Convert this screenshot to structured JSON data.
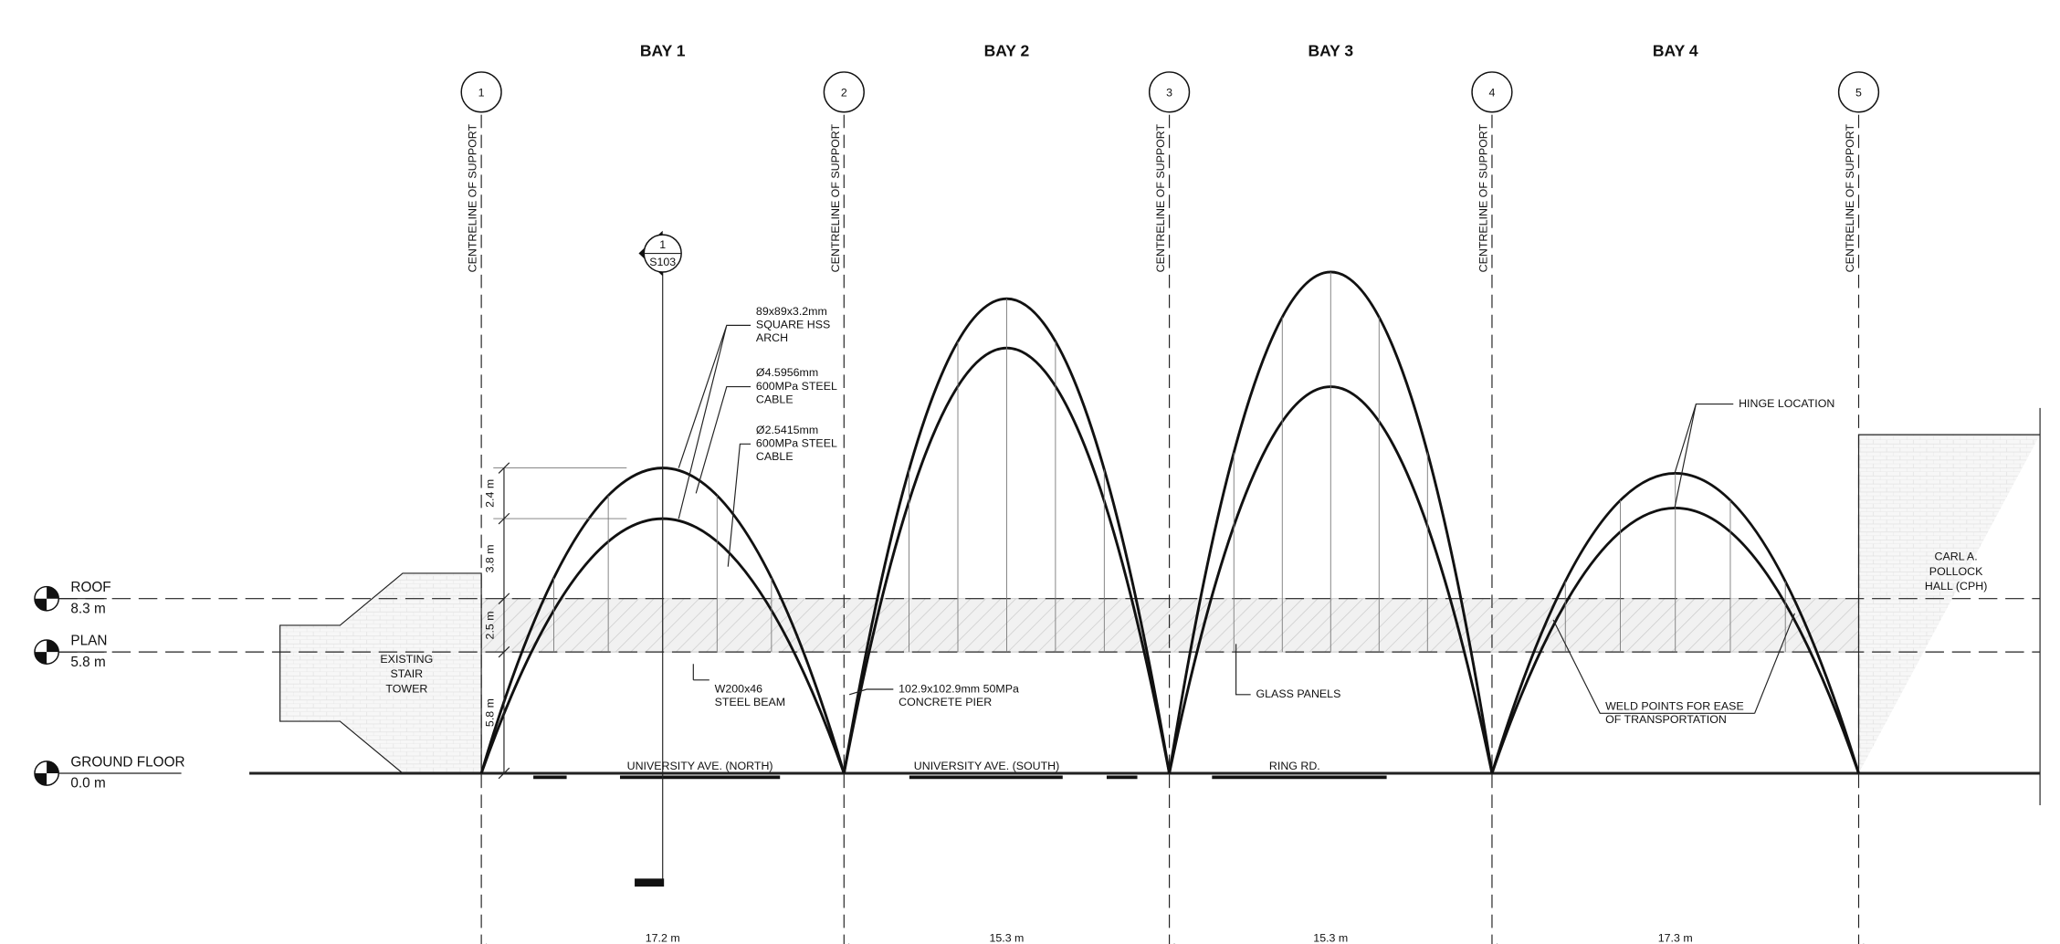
{
  "bays": [
    {
      "label": "BAY 1",
      "dimension": "17.2 m"
    },
    {
      "label": "BAY 2",
      "dimension": "15.3 m"
    },
    {
      "label": "BAY 3",
      "dimension": "15.3 m"
    },
    {
      "label": "BAY 4",
      "dimension": "17.3 m"
    }
  ],
  "gridlines": [
    {
      "number": "1",
      "label": "CENTRELINE OF SUPPORT"
    },
    {
      "number": "2",
      "label": "CENTRELINE OF SUPPORT"
    },
    {
      "number": "3",
      "label": "CENTRELINE OF SUPPORT"
    },
    {
      "number": "4",
      "label": "CENTRELINE OF SUPPORT"
    },
    {
      "number": "5",
      "label": "CENTRELINE OF SUPPORT"
    }
  ],
  "levels": [
    {
      "name": "ROOF",
      "elevation": "8.3 m"
    },
    {
      "name": "PLAN",
      "elevation": "5.8 m"
    },
    {
      "name": "GROUND FLOOR",
      "elevation": "0.0 m"
    }
  ],
  "vertical_dimensions": [
    "2.4 m",
    "3.8 m",
    "2.5 m",
    "5.8 m"
  ],
  "section_marker": {
    "number": "1",
    "sheet": "S103"
  },
  "roads": [
    "UNIVERSITY AVE. (NORTH)",
    "UNIVERSITY AVE. (SOUTH)",
    "RING RD."
  ],
  "buildings": {
    "left": [
      "EXISTING",
      "STAIR",
      "TOWER"
    ],
    "right": [
      "CARL A.",
      "POLLOCK",
      "HALL (CPH)"
    ]
  },
  "annotations": {
    "arch": [
      "89x89x3.2mm",
      "SQUARE HSS",
      "ARCH"
    ],
    "cable_large": [
      "Ø4.5956mm",
      "600MPa STEEL",
      "CABLE"
    ],
    "cable_small": [
      "Ø2.5415mm",
      "600MPa STEEL",
      "CABLE"
    ],
    "beam": [
      "W200x46",
      "STEEL BEAM"
    ],
    "pier": [
      "102.9x102.9mm 50MPa",
      "CONCRETE PIER"
    ],
    "glass": [
      "GLASS PANELS"
    ],
    "hinge": [
      "HINGE LOCATION"
    ],
    "weld": [
      "WELD POINTS FOR EASE",
      "OF TRANSPORTATION"
    ]
  }
}
